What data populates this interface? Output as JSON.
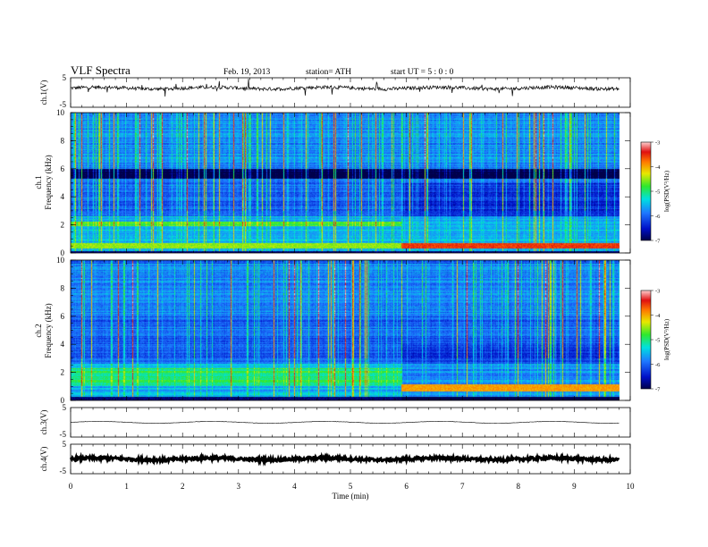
{
  "header": {
    "title": "VLF  Spectra",
    "date": "Feb. 19, 2013",
    "station": "station= ATH",
    "start": "start  UT  =   5  : 0  : 0"
  },
  "chart_data": {
    "type": "heatmap",
    "xlabel": "Time  (min)",
    "xlim": [
      0,
      10
    ],
    "x_ticks": [
      "0",
      "1",
      "2",
      "3",
      "4",
      "5",
      "6",
      "7",
      "8",
      "9",
      "10"
    ],
    "data_end_min": 9.8,
    "panels": [
      {
        "id": "ch1-waveform",
        "type": "line",
        "ylabel": "ch.1(V)",
        "ylim": [
          -5,
          5
        ],
        "y_ticks": [
          "5",
          "-5"
        ],
        "baseline_V": 1.5,
        "noise_amplitude_V": 0.6
      },
      {
        "id": "ch1-spectrogram",
        "type": "heatmap",
        "ylabel_line1": "ch.1",
        "ylabel_line2": "Frequency  (kHz)",
        "ylim_kHz": [
          0,
          10
        ],
        "y_ticks": [
          "0",
          "2",
          "4",
          "6",
          "8",
          "10"
        ],
        "colorbar": {
          "label": "log(PSD(V²/Hz)",
          "range": [
            -7,
            -3
          ],
          "ticks": [
            "-3",
            "-4",
            "-5",
            "-6",
            "-7"
          ]
        },
        "features": [
          {
            "description_band_kHz": [
              0.3,
              0.7
            ],
            "level": -3.3,
            "from_min": 5.9,
            "to_min": 9.8
          },
          {
            "description_band_kHz": [
              5.4,
              5.9
            ],
            "level": -7.0,
            "from_min": 5.9,
            "to_min": 9.8
          }
        ]
      },
      {
        "id": "ch2-spectrogram",
        "type": "heatmap",
        "ylabel_line1": "ch.2",
        "ylabel_line2": "Frequency  (kHz)",
        "ylim_kHz": [
          0,
          10
        ],
        "y_ticks": [
          "0",
          "2",
          "4",
          "6",
          "8",
          "10"
        ],
        "colorbar": {
          "label": "log(PSD(V²/Hz)",
          "range": [
            -7,
            -3
          ],
          "ticks": [
            "-3",
            "-4",
            "-5",
            "-6",
            "-7"
          ]
        },
        "features": [
          {
            "description_band_kHz": [
              0.6,
              1.1
            ],
            "level": -3.5,
            "from_min": 5.9,
            "to_min": 9.8
          }
        ]
      },
      {
        "id": "ch3-waveform",
        "type": "line",
        "ylabel": "ch.3(V)",
        "ylim": [
          -5,
          5
        ],
        "y_ticks": [
          "5",
          "-5"
        ],
        "baseline_V": 0,
        "noise_amplitude_V": 0.05
      },
      {
        "id": "ch4-waveform",
        "type": "line",
        "ylabel": "ch.4(V)",
        "ylim": [
          -5,
          5
        ],
        "y_ticks": [
          "5",
          "-5"
        ],
        "baseline_V": 0,
        "noise_amplitude_V": 0.5
      }
    ]
  }
}
